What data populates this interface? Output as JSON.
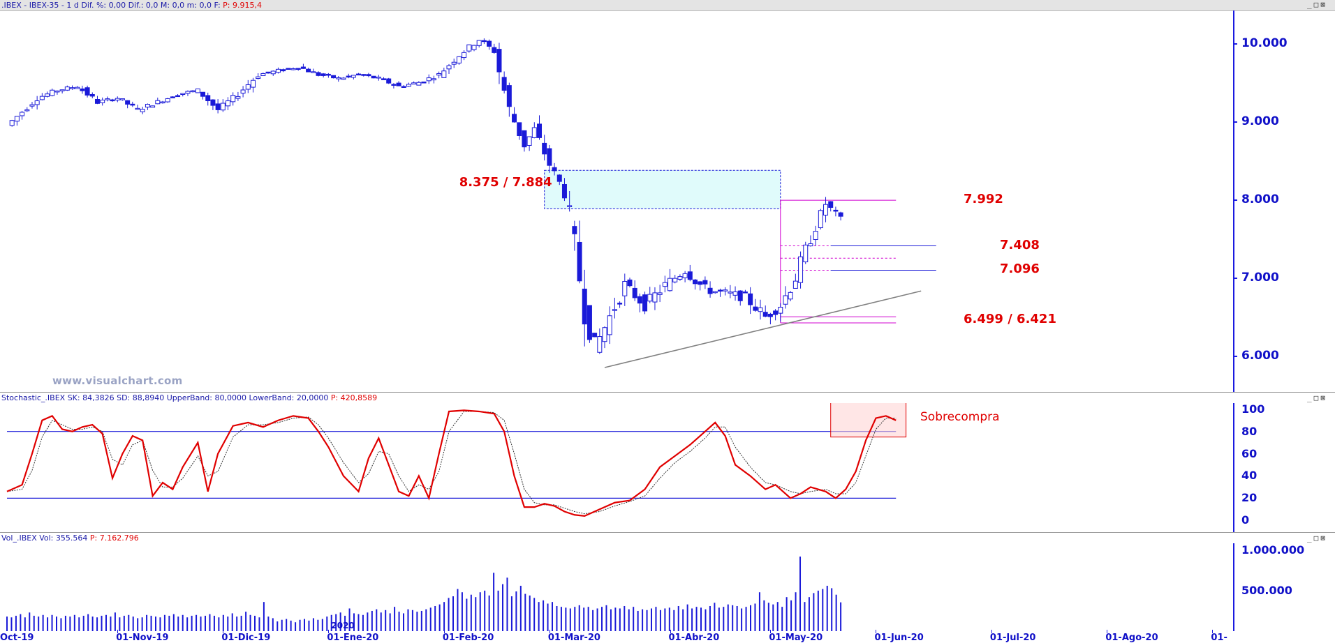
{
  "header": {
    "price_title": ".IBEX - IBEX-35 - 1 d  Dif. %: 0,00  Dif.: 0,0  M: 0,0  m: 0,0  F:",
    "price_value": "P: 9.915,4",
    "stoch_title": "Stochastic_.IBEX  SK: 84,3826  SD: 88,8940  UpperBand: 80,0000  LowerBand: 20,0000",
    "stoch_value": "P: 420,8589",
    "vol_title": "Vol_.IBEX  Vol: 355.564",
    "vol_value": "P: 7.162.796",
    "window_buttons": "_□⊠"
  },
  "watermark": "www.visualchart.com",
  "colors": {
    "bull": "#ffffff",
    "bear": "#1a1ad8",
    "axis": "#1010c8",
    "annotation": "#e00000",
    "zone_fill": "#e0fbfb",
    "fib_lines": "#d000d0",
    "trendline": "#808080",
    "stoch_k": "#e00000",
    "stoch_d": "#333333"
  },
  "chart_data": [
    {
      "type": "candlestick",
      "panel": "price",
      "y_axis_ticks": [
        "10.000",
        "9.000",
        "8.000",
        "7.000",
        "6.000"
      ],
      "y_tick_values": [
        10000,
        9000,
        8000,
        7000,
        6000
      ],
      "ylim": [
        5600,
        10350
      ],
      "x_axis_labels": [
        "Oct-19",
        "01-Nov-19",
        "01-Dic-19",
        "01-Ene-20",
        "01-Feb-20",
        "01-Mar-20",
        "01-Abr-20",
        "01-May-20",
        "01-Jun-20",
        "01-Jul-20",
        "01-Ago-20",
        "01-"
      ],
      "x_axis_label_positions": [
        0,
        22,
        43,
        64,
        87,
        108,
        132,
        152,
        173,
        196,
        219,
        240
      ],
      "x_range": [
        0,
        243
      ],
      "year_marker": "2020",
      "key_series": [
        [
          0,
          8950
        ],
        [
          6,
          9300
        ],
        [
          10,
          9400
        ],
        [
          14,
          9450
        ],
        [
          18,
          9250
        ],
        [
          22,
          9300
        ],
        [
          26,
          9150
        ],
        [
          30,
          9250
        ],
        [
          34,
          9350
        ],
        [
          38,
          9400
        ],
        [
          42,
          9150
        ],
        [
          46,
          9350
        ],
        [
          50,
          9600
        ],
        [
          54,
          9650
        ],
        [
          58,
          9700
        ],
        [
          62,
          9600
        ],
        [
          66,
          9550
        ],
        [
          70,
          9600
        ],
        [
          74,
          9550
        ],
        [
          78,
          9450
        ],
        [
          82,
          9500
        ],
        [
          86,
          9600
        ],
        [
          90,
          9850
        ],
        [
          94,
          10050
        ],
        [
          97,
          9900
        ],
        [
          100,
          9150
        ],
        [
          103,
          8700
        ],
        [
          105,
          8900
        ],
        [
          108,
          8450
        ],
        [
          111,
          8100
        ],
        [
          113,
          7400
        ],
        [
          115,
          6600
        ],
        [
          117,
          6100
        ],
        [
          120,
          6500
        ],
        [
          123,
          6900
        ],
        [
          127,
          6650
        ],
        [
          131,
          6900
        ],
        [
          135,
          7100
        ],
        [
          139,
          6850
        ],
        [
          143,
          6800
        ],
        [
          147,
          6750
        ],
        [
          151,
          6500
        ],
        [
          154,
          6650
        ],
        [
          157,
          7000
        ],
        [
          160,
          7500
        ],
        [
          163,
          7950
        ],
        [
          166,
          7750
        ]
      ],
      "annotations": [
        {
          "label": "8.375 / 7.884",
          "type": "resistance-zone",
          "y_top": 8375,
          "y_bottom": 7884,
          "x_from": 107,
          "x_to": 154
        },
        {
          "label": "7.992",
          "type": "level",
          "y": 7992
        },
        {
          "label": "7.408",
          "type": "level",
          "y": 7408
        },
        {
          "label": "7.096",
          "type": "level",
          "y": 7096
        },
        {
          "label": "6.499 / 6.421",
          "type": "level",
          "y_top": 6499,
          "y_bottom": 6421
        }
      ],
      "fib_levels": [
        7992,
        7408,
        7250,
        7096,
        6499,
        6421
      ],
      "fib_x_from": 154,
      "fib_x_to": 177,
      "trendline": [
        [
          119,
          5850
        ],
        [
          182,
          6830
        ]
      ]
    },
    {
      "type": "line",
      "panel": "stochastic",
      "y_axis_ticks": [
        "100",
        "80",
        "60",
        "40",
        "20",
        "0"
      ],
      "y_tick_values": [
        100,
        80,
        60,
        40,
        20,
        0
      ],
      "ylim": [
        -8,
        103
      ],
      "bands": [
        80,
        20
      ],
      "band_x_to": 177,
      "series": [
        {
          "name": "SK",
          "points": [
            [
              0,
              26
            ],
            [
              3,
              32
            ],
            [
              5,
              60
            ],
            [
              7,
              90
            ],
            [
              9,
              94
            ],
            [
              11,
              82
            ],
            [
              13,
              80
            ],
            [
              15,
              84
            ],
            [
              17,
              86
            ],
            [
              19,
              78
            ],
            [
              21,
              38
            ],
            [
              23,
              60
            ],
            [
              25,
              76
            ],
            [
              27,
              72
            ],
            [
              29,
              22
            ],
            [
              31,
              34
            ],
            [
              33,
              28
            ],
            [
              35,
              48
            ],
            [
              38,
              70
            ],
            [
              40,
              26
            ],
            [
              42,
              60
            ],
            [
              45,
              85
            ],
            [
              48,
              88
            ],
            [
              51,
              84
            ],
            [
              54,
              90
            ],
            [
              57,
              94
            ],
            [
              60,
              92
            ],
            [
              62,
              80
            ],
            [
              64,
              66
            ],
            [
              67,
              40
            ],
            [
              70,
              26
            ],
            [
              72,
              56
            ],
            [
              74,
              74
            ],
            [
              76,
              50
            ],
            [
              78,
              26
            ],
            [
              80,
              22
            ],
            [
              82,
              40
            ],
            [
              84,
              20
            ],
            [
              86,
              60
            ],
            [
              88,
              98
            ],
            [
              91,
              99
            ],
            [
              94,
              98
            ],
            [
              97,
              96
            ],
            [
              99,
              80
            ],
            [
              101,
              40
            ],
            [
              103,
              12
            ],
            [
              105,
              12
            ],
            [
              107,
              15
            ],
            [
              109,
              13
            ],
            [
              111,
              8
            ],
            [
              113,
              5
            ],
            [
              115,
              4
            ],
            [
              118,
              10
            ],
            [
              121,
              16
            ],
            [
              124,
              18
            ],
            [
              127,
              28
            ],
            [
              130,
              48
            ],
            [
              133,
              58
            ],
            [
              136,
              68
            ],
            [
              139,
              80
            ],
            [
              141,
              88
            ],
            [
              143,
              76
            ],
            [
              145,
              50
            ],
            [
              148,
              40
            ],
            [
              151,
              28
            ],
            [
              153,
              32
            ],
            [
              156,
              20
            ],
            [
              158,
              24
            ],
            [
              160,
              30
            ],
            [
              163,
              26
            ],
            [
              165,
              20
            ],
            [
              167,
              28
            ],
            [
              169,
              44
            ],
            [
              171,
              72
            ],
            [
              173,
              92
            ],
            [
              175,
              94
            ],
            [
              177,
              90
            ]
          ]
        },
        {
          "name": "SD",
          "points": [
            [
              0,
              26
            ],
            [
              3,
              28
            ],
            [
              5,
              45
            ],
            [
              7,
              75
            ],
            [
              9,
              90
            ],
            [
              11,
              86
            ],
            [
              13,
              82
            ],
            [
              15,
              82
            ],
            [
              17,
              84
            ],
            [
              19,
              80
            ],
            [
              21,
              55
            ],
            [
              23,
              50
            ],
            [
              25,
              68
            ],
            [
              27,
              72
            ],
            [
              29,
              45
            ],
            [
              31,
              30
            ],
            [
              33,
              30
            ],
            [
              35,
              38
            ],
            [
              38,
              58
            ],
            [
              40,
              40
            ],
            [
              42,
              44
            ],
            [
              45,
              75
            ],
            [
              48,
              86
            ],
            [
              51,
              86
            ],
            [
              54,
              88
            ],
            [
              57,
              92
            ],
            [
              60,
              93
            ],
            [
              62,
              86
            ],
            [
              64,
              74
            ],
            [
              67,
              52
            ],
            [
              70,
              34
            ],
            [
              72,
              42
            ],
            [
              74,
              62
            ],
            [
              76,
              60
            ],
            [
              78,
              40
            ],
            [
              80,
              26
            ],
            [
              82,
              32
            ],
            [
              84,
              28
            ],
            [
              86,
              44
            ],
            [
              88,
              80
            ],
            [
              91,
              98
            ],
            [
              94,
              98
            ],
            [
              97,
              97
            ],
            [
              99,
              90
            ],
            [
              101,
              60
            ],
            [
              103,
              28
            ],
            [
              105,
              16
            ],
            [
              107,
              14
            ],
            [
              109,
              14
            ],
            [
              111,
              11
            ],
            [
              113,
              8
            ],
            [
              115,
              6
            ],
            [
              118,
              8
            ],
            [
              121,
              13
            ],
            [
              124,
              17
            ],
            [
              127,
              22
            ],
            [
              130,
              38
            ],
            [
              133,
              52
            ],
            [
              136,
              62
            ],
            [
              139,
              74
            ],
            [
              141,
              84
            ],
            [
              143,
              84
            ],
            [
              145,
              66
            ],
            [
              148,
              48
            ],
            [
              151,
              34
            ],
            [
              153,
              32
            ],
            [
              156,
              26
            ],
            [
              158,
              24
            ],
            [
              160,
              26
            ],
            [
              163,
              28
            ],
            [
              165,
              24
            ],
            [
              167,
              24
            ],
            [
              169,
              34
            ],
            [
              171,
              58
            ],
            [
              173,
              82
            ],
            [
              175,
              92
            ],
            [
              177,
              92
            ]
          ]
        }
      ],
      "annotation": {
        "label": "Sobrecompra",
        "box_x": [
          164,
          179
        ],
        "box_y": [
          75,
          106
        ]
      }
    },
    {
      "type": "bar",
      "panel": "volume",
      "y_axis_ticks": [
        "1.000.000",
        "500.000"
      ],
      "y_tick_values": [
        1000000,
        500000
      ],
      "ylim": [
        0,
        1050000
      ],
      "values": [
        180000,
        170000,
        190000,
        210000,
        170000,
        230000,
        190000,
        180000,
        200000,
        170000,
        200000,
        180000,
        160000,
        190000,
        180000,
        200000,
        170000,
        190000,
        210000,
        180000,
        170000,
        190000,
        200000,
        180000,
        230000,
        170000,
        190000,
        200000,
        180000,
        160000,
        170000,
        200000,
        190000,
        180000,
        170000,
        200000,
        190000,
        210000,
        180000,
        200000,
        170000,
        190000,
        200000,
        180000,
        190000,
        210000,
        190000,
        170000,
        200000,
        180000,
        220000,
        180000,
        190000,
        240000,
        200000,
        190000,
        170000,
        360000,
        180000,
        160000,
        120000,
        140000,
        150000,
        130000,
        110000,
        140000,
        150000,
        130000,
        160000,
        140000,
        150000,
        180000,
        200000,
        210000,
        230000,
        190000,
        280000,
        220000,
        210000,
        200000,
        230000,
        250000,
        270000,
        230000,
        260000,
        220000,
        300000,
        240000,
        220000,
        270000,
        260000,
        240000,
        250000,
        270000,
        290000,
        310000,
        330000,
        360000,
        410000,
        430000,
        520000,
        480000,
        400000,
        450000,
        420000,
        480000,
        500000,
        440000,
        720000,
        500000,
        580000,
        660000,
        430000,
        490000,
        560000,
        460000,
        440000,
        410000,
        360000,
        380000,
        340000,
        360000,
        310000,
        300000,
        290000,
        280000,
        300000,
        320000,
        290000,
        300000,
        260000,
        280000,
        300000,
        320000,
        270000,
        290000,
        280000,
        310000,
        270000,
        300000,
        250000,
        270000,
        260000,
        280000,
        300000,
        260000,
        280000,
        290000,
        260000,
        310000,
        270000,
        330000,
        280000,
        300000,
        290000,
        270000,
        310000,
        350000,
        290000,
        300000,
        330000,
        320000,
        310000,
        280000,
        300000,
        320000,
        340000,
        480000,
        380000,
        350000,
        330000,
        360000,
        300000,
        420000,
        380000,
        480000,
        920000,
        360000,
        420000,
        470000,
        500000,
        520000,
        560000,
        530000,
        450000,
        355564
      ]
    }
  ]
}
